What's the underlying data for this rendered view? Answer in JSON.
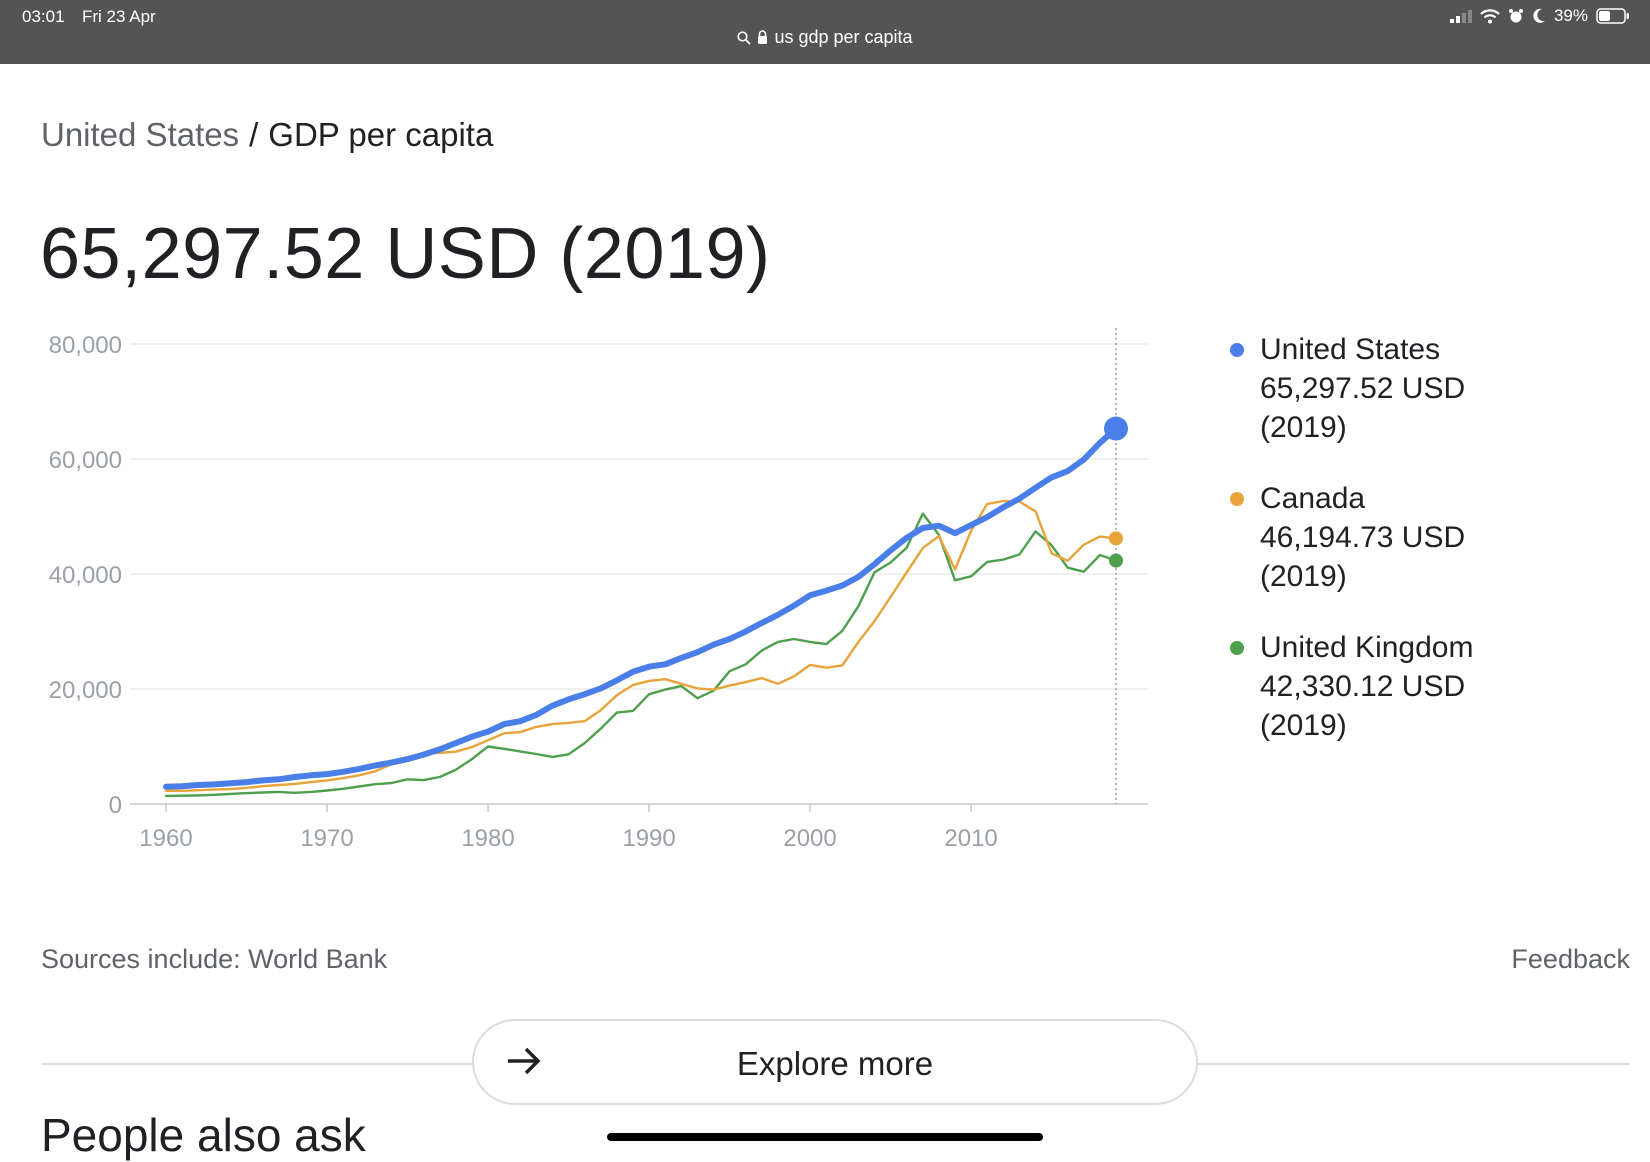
{
  "status_bar": {
    "time": "03:01",
    "date": "Fri 23 Apr",
    "address": "us gdp per capita",
    "battery": "39%"
  },
  "breadcrumb": {
    "country": "United States",
    "separator": "/",
    "metric": "GDP per capita"
  },
  "headline_value": "65,297.52 USD (2019)",
  "legend": [
    {
      "name": "United States",
      "value": "65,297.52 USD",
      "year": "(2019)",
      "color": "#4a7ee8"
    },
    {
      "name": "Canada",
      "value": "46,194.73 USD",
      "year": "(2019)",
      "color": "#e8a33a"
    },
    {
      "name": "United Kingdom",
      "value": "42,330.12 USD",
      "year": "(2019)",
      "color": "#4e9f4e"
    }
  ],
  "chart_data": {
    "type": "line",
    "xlim": [
      1960,
      2019
    ],
    "ylim": [
      0,
      80000
    ],
    "y_ticks": [
      "80,000",
      "60,000",
      "40,000",
      "20,000",
      "0"
    ],
    "x_ticks": [
      "1960",
      "1970",
      "1980",
      "1990",
      "2000",
      "2010"
    ],
    "grid": true,
    "legend_position": "right",
    "marker_year": 2019,
    "series": [
      {
        "name": "United States",
        "color": "#4a7ee8",
        "points": [
          [
            1960,
            3000
          ],
          [
            1961,
            3100
          ],
          [
            1962,
            3300
          ],
          [
            1963,
            3400
          ],
          [
            1964,
            3600
          ],
          [
            1965,
            3800
          ],
          [
            1966,
            4100
          ],
          [
            1967,
            4300
          ],
          [
            1968,
            4700
          ],
          [
            1969,
            5000
          ],
          [
            1970,
            5200
          ],
          [
            1971,
            5600
          ],
          [
            1972,
            6100
          ],
          [
            1973,
            6700
          ],
          [
            1974,
            7200
          ],
          [
            1975,
            7800
          ],
          [
            1976,
            8600
          ],
          [
            1977,
            9500
          ],
          [
            1978,
            10600
          ],
          [
            1979,
            11700
          ],
          [
            1980,
            12600
          ],
          [
            1981,
            13900
          ],
          [
            1982,
            14400
          ],
          [
            1983,
            15500
          ],
          [
            1984,
            17100
          ],
          [
            1985,
            18200
          ],
          [
            1986,
            19100
          ],
          [
            1987,
            20100
          ],
          [
            1988,
            21500
          ],
          [
            1989,
            23000
          ],
          [
            1990,
            23900
          ],
          [
            1991,
            24300
          ],
          [
            1992,
            25400
          ],
          [
            1993,
            26400
          ],
          [
            1994,
            27700
          ],
          [
            1995,
            28700
          ],
          [
            1996,
            30000
          ],
          [
            1997,
            31500
          ],
          [
            1998,
            32900
          ],
          [
            1999,
            34500
          ],
          [
            2000,
            36300
          ],
          [
            2001,
            37100
          ],
          [
            2002,
            38000
          ],
          [
            2003,
            39500
          ],
          [
            2004,
            41700
          ],
          [
            2005,
            44100
          ],
          [
            2006,
            46300
          ],
          [
            2007,
            48000
          ],
          [
            2008,
            48400
          ],
          [
            2009,
            47100
          ],
          [
            2010,
            48500
          ],
          [
            2011,
            49900
          ],
          [
            2012,
            51600
          ],
          [
            2013,
            53100
          ],
          [
            2014,
            55000
          ],
          [
            2015,
            56800
          ],
          [
            2016,
            57900
          ],
          [
            2017,
            59900
          ],
          [
            2018,
            62800
          ],
          [
            2019,
            65297.52
          ]
        ]
      },
      {
        "name": "Canada",
        "color": "#e8a33a",
        "points": [
          [
            1960,
            2300
          ],
          [
            1961,
            2300
          ],
          [
            1962,
            2400
          ],
          [
            1963,
            2500
          ],
          [
            1964,
            2600
          ],
          [
            1965,
            2800
          ],
          [
            1966,
            3100
          ],
          [
            1967,
            3300
          ],
          [
            1968,
            3500
          ],
          [
            1969,
            3800
          ],
          [
            1970,
            4100
          ],
          [
            1971,
            4500
          ],
          [
            1972,
            5000
          ],
          [
            1973,
            5700
          ],
          [
            1974,
            6900
          ],
          [
            1975,
            7500
          ],
          [
            1976,
            8800
          ],
          [
            1977,
            8900
          ],
          [
            1978,
            9100
          ],
          [
            1979,
            9900
          ],
          [
            1980,
            11100
          ],
          [
            1981,
            12300
          ],
          [
            1982,
            12500
          ],
          [
            1983,
            13400
          ],
          [
            1984,
            13900
          ],
          [
            1985,
            14100
          ],
          [
            1986,
            14400
          ],
          [
            1987,
            16300
          ],
          [
            1988,
            18900
          ],
          [
            1989,
            20700
          ],
          [
            1990,
            21400
          ],
          [
            1991,
            21700
          ],
          [
            1992,
            20900
          ],
          [
            1993,
            20100
          ],
          [
            1994,
            19900
          ],
          [
            1995,
            20600
          ],
          [
            1996,
            21200
          ],
          [
            1997,
            21900
          ],
          [
            1998,
            20900
          ],
          [
            1999,
            22200
          ],
          [
            2000,
            24200
          ],
          [
            2001,
            23700
          ],
          [
            2002,
            24100
          ],
          [
            2003,
            28200
          ],
          [
            2004,
            31800
          ],
          [
            2005,
            36000
          ],
          [
            2006,
            40300
          ],
          [
            2007,
            44500
          ],
          [
            2008,
            46600
          ],
          [
            2009,
            40800
          ],
          [
            2010,
            47500
          ],
          [
            2011,
            52200
          ],
          [
            2012,
            52700
          ],
          [
            2013,
            52600
          ],
          [
            2014,
            50900
          ],
          [
            2015,
            43600
          ],
          [
            2016,
            42300
          ],
          [
            2017,
            45100
          ],
          [
            2018,
            46500
          ],
          [
            2019,
            46194.73
          ]
        ]
      },
      {
        "name": "United Kingdom",
        "color": "#4e9f4e",
        "points": [
          [
            1960,
            1400
          ],
          [
            1961,
            1450
          ],
          [
            1962,
            1500
          ],
          [
            1963,
            1600
          ],
          [
            1964,
            1750
          ],
          [
            1965,
            1900
          ],
          [
            1966,
            2000
          ],
          [
            1967,
            2100
          ],
          [
            1968,
            1950
          ],
          [
            1969,
            2100
          ],
          [
            1970,
            2350
          ],
          [
            1971,
            2650
          ],
          [
            1972,
            3050
          ],
          [
            1973,
            3450
          ],
          [
            1974,
            3650
          ],
          [
            1975,
            4300
          ],
          [
            1976,
            4150
          ],
          [
            1977,
            4700
          ],
          [
            1978,
            5950
          ],
          [
            1979,
            7800
          ],
          [
            1980,
            10000
          ],
          [
            1981,
            9600
          ],
          [
            1982,
            9150
          ],
          [
            1983,
            8700
          ],
          [
            1984,
            8200
          ],
          [
            1985,
            8650
          ],
          [
            1986,
            10600
          ],
          [
            1987,
            13100
          ],
          [
            1988,
            15900
          ],
          [
            1989,
            16200
          ],
          [
            1990,
            19100
          ],
          [
            1991,
            19900
          ],
          [
            1992,
            20500
          ],
          [
            1993,
            18400
          ],
          [
            1994,
            19700
          ],
          [
            1995,
            23100
          ],
          [
            1996,
            24300
          ],
          [
            1997,
            26700
          ],
          [
            1998,
            28200
          ],
          [
            1999,
            28700
          ],
          [
            2000,
            28200
          ],
          [
            2001,
            27800
          ],
          [
            2002,
            30100
          ],
          [
            2003,
            34400
          ],
          [
            2004,
            40300
          ],
          [
            2005,
            42000
          ],
          [
            2006,
            44600
          ],
          [
            2007,
            50500
          ],
          [
            2008,
            46800
          ],
          [
            2009,
            38900
          ],
          [
            2010,
            39600
          ],
          [
            2011,
            42100
          ],
          [
            2012,
            42500
          ],
          [
            2013,
            43400
          ],
          [
            2014,
            47400
          ],
          [
            2015,
            45000
          ],
          [
            2016,
            41100
          ],
          [
            2017,
            40400
          ],
          [
            2018,
            43300
          ],
          [
            2019,
            42330.12
          ]
        ]
      }
    ]
  },
  "footer": {
    "sources": "Sources include: World Bank",
    "feedback": "Feedback"
  },
  "explore_button": {
    "label": "Explore more"
  },
  "people_also_ask": "People also ask"
}
